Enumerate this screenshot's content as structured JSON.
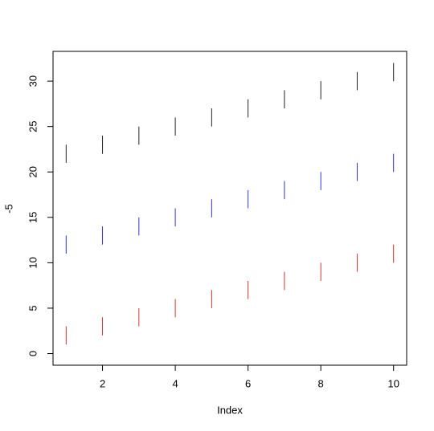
{
  "chart_data": {
    "type": "segment",
    "x": [
      1,
      2,
      3,
      4,
      5,
      6,
      7,
      8,
      9,
      10
    ],
    "series": [
      {
        "color": "#cc3333",
        "low": [
          1,
          2,
          3,
          4,
          5,
          6,
          7,
          8,
          9,
          10
        ],
        "high": [
          3,
          4,
          5,
          6,
          7,
          8,
          9,
          10,
          11,
          12
        ]
      },
      {
        "color": "#3333cc",
        "low": [
          11,
          12,
          13,
          14,
          15,
          16,
          17,
          18,
          19,
          20
        ],
        "high": [
          13,
          14,
          15,
          16,
          17,
          18,
          19,
          20,
          21,
          22
        ]
      },
      {
        "color": "#222222",
        "low": [
          21,
          22,
          23,
          24,
          25,
          26,
          27,
          28,
          29,
          30
        ],
        "high": [
          23,
          24,
          25,
          26,
          27,
          28,
          29,
          30,
          31,
          32
        ]
      }
    ],
    "xlabel": "Index",
    "ylabel": "-5",
    "xlim": [
      0.64,
      10.36
    ],
    "xticks": [
      2,
      4,
      6,
      8,
      10
    ],
    "ylim": [
      -1.28,
      33.28
    ],
    "yticks": [
      0,
      5,
      10,
      15,
      20,
      25,
      30
    ]
  }
}
